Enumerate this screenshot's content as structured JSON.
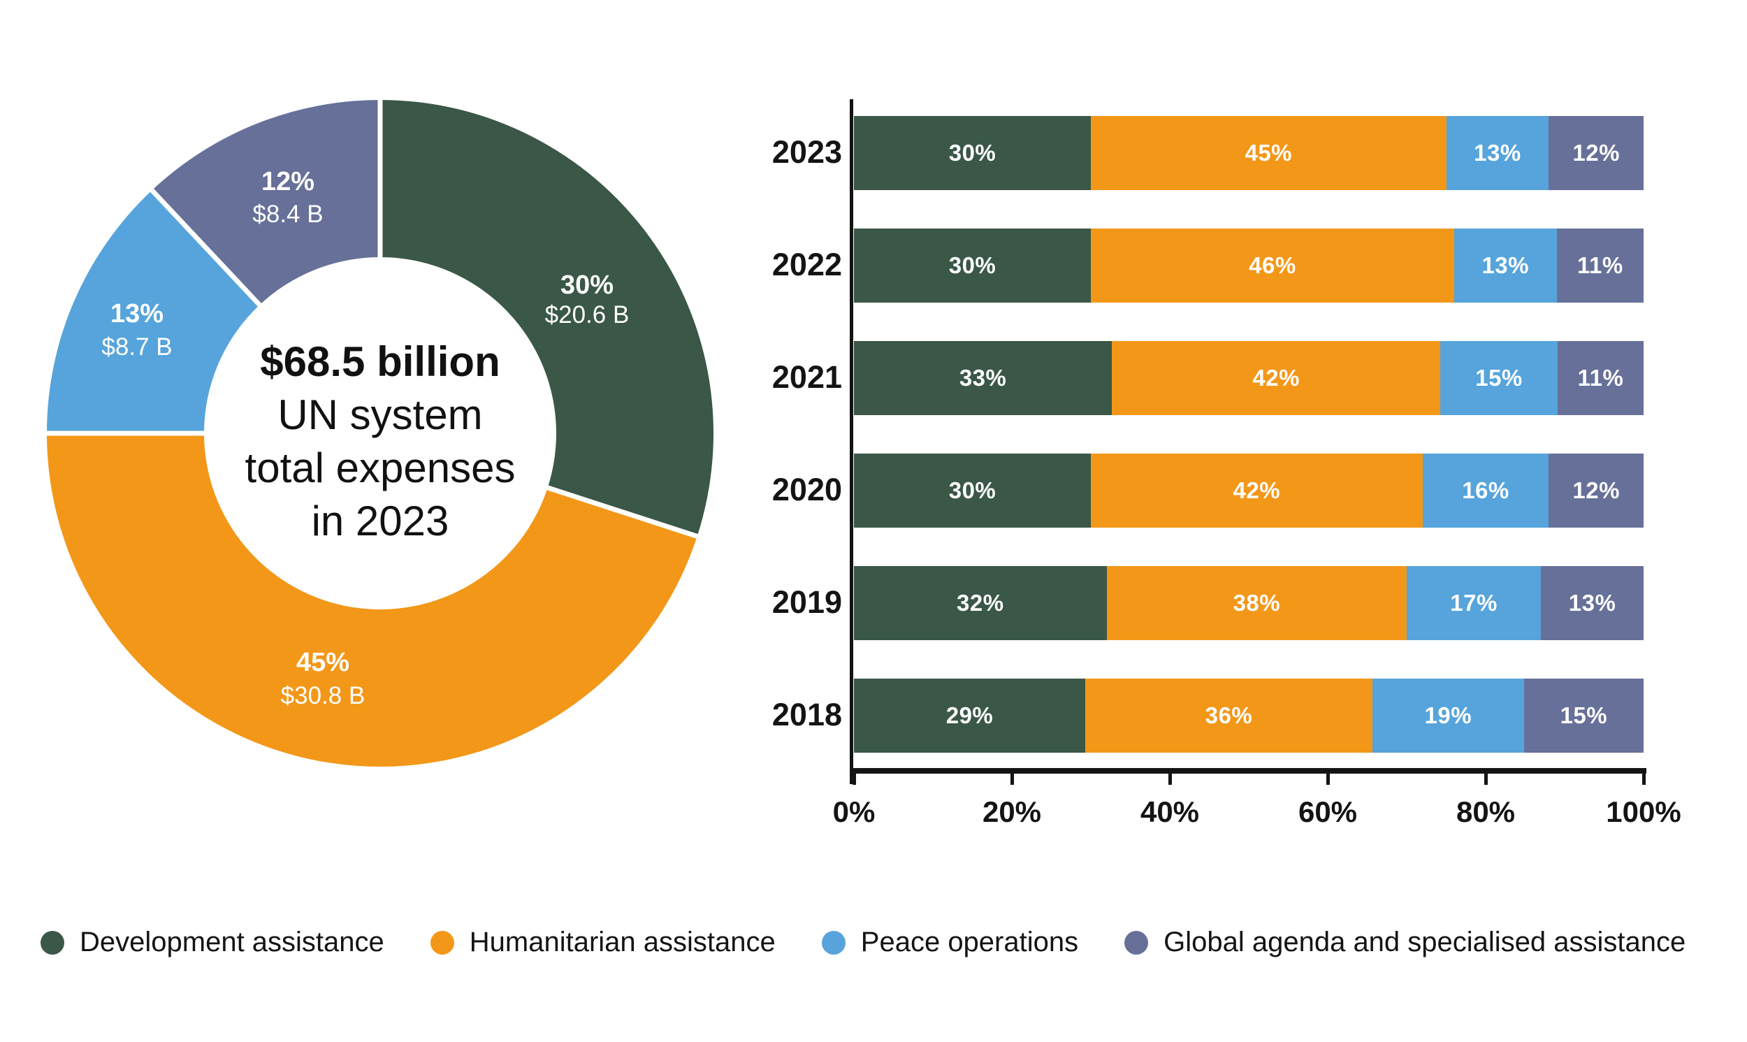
{
  "colors": {
    "development": "#3A5747",
    "humanitarian": "#F39719",
    "peace": "#56A4DB",
    "global": "#667098",
    "axis": "#141414",
    "bar_label": "#FFFFFF"
  },
  "chart_data": [
    {
      "type": "pie",
      "subtype": "donut",
      "direction": "clockwise",
      "start_angle_deg": 0,
      "center_lines": [
        "$68.5 billion",
        "UN system",
        "total expenses",
        "in 2023"
      ],
      "slices": [
        {
          "key": "development",
          "label": "Development assistance",
          "percent": 30,
          "percent_label": "30%",
          "value": "$20.6 B",
          "color": "#3A5747"
        },
        {
          "key": "humanitarian",
          "label": "Humanitarian assistance",
          "percent": 45,
          "percent_label": "45%",
          "value": "$30.8 B",
          "color": "#F39719"
        },
        {
          "key": "peace",
          "label": "Peace operations",
          "percent": 13,
          "percent_label": "13%",
          "value": "$8.7 B",
          "color": "#56A4DB"
        },
        {
          "key": "global",
          "label": "Global agenda and specialised assistance",
          "percent": 12,
          "percent_label": "12%",
          "value": "$8.4 B",
          "color": "#667098"
        }
      ]
    },
    {
      "type": "bar",
      "orientation": "horizontal_stacked",
      "categories": [
        "2023",
        "2022",
        "2021",
        "2020",
        "2019",
        "2018"
      ],
      "series": [
        {
          "key": "development",
          "name": "Development assistance",
          "color": "#3A5747",
          "values": [
            30,
            30,
            33,
            30,
            32,
            29
          ],
          "labels": [
            "30%",
            "30%",
            "33%",
            "30%",
            "32%",
            "29%"
          ]
        },
        {
          "key": "humanitarian",
          "name": "Humanitarian assistance",
          "color": "#F39719",
          "values": [
            45,
            46,
            42,
            42,
            38,
            36
          ],
          "labels": [
            "45%",
            "46%",
            "42%",
            "42%",
            "38%",
            "36%"
          ]
        },
        {
          "key": "peace",
          "name": "Peace operations",
          "color": "#56A4DB",
          "values": [
            13,
            13,
            15,
            16,
            17,
            19
          ],
          "labels": [
            "13%",
            "13%",
            "15%",
            "16%",
            "17%",
            "19%"
          ]
        },
        {
          "key": "global",
          "name": "Global agenda and specialised assistance",
          "color": "#667098",
          "values": [
            12,
            11,
            11,
            12,
            13,
            15
          ],
          "labels": [
            "12%",
            "11%",
            "11%",
            "12%",
            "13%",
            "15%"
          ]
        }
      ],
      "x_ticks": [
        "0%",
        "20%",
        "40%",
        "60%",
        "80%",
        "100%"
      ],
      "xlim": [
        0,
        100
      ],
      "grid": false,
      "legend_position": "bottom"
    }
  ],
  "legend": {
    "items": [
      {
        "key": "development",
        "label": "Development assistance",
        "color": "#3A5747"
      },
      {
        "key": "humanitarian",
        "label": "Humanitarian assistance",
        "color": "#F39719"
      },
      {
        "key": "peace",
        "label": "Peace operations",
        "color": "#56A4DB"
      },
      {
        "key": "global",
        "label": "Global agenda and specialised assistance",
        "color": "#667098"
      }
    ]
  }
}
